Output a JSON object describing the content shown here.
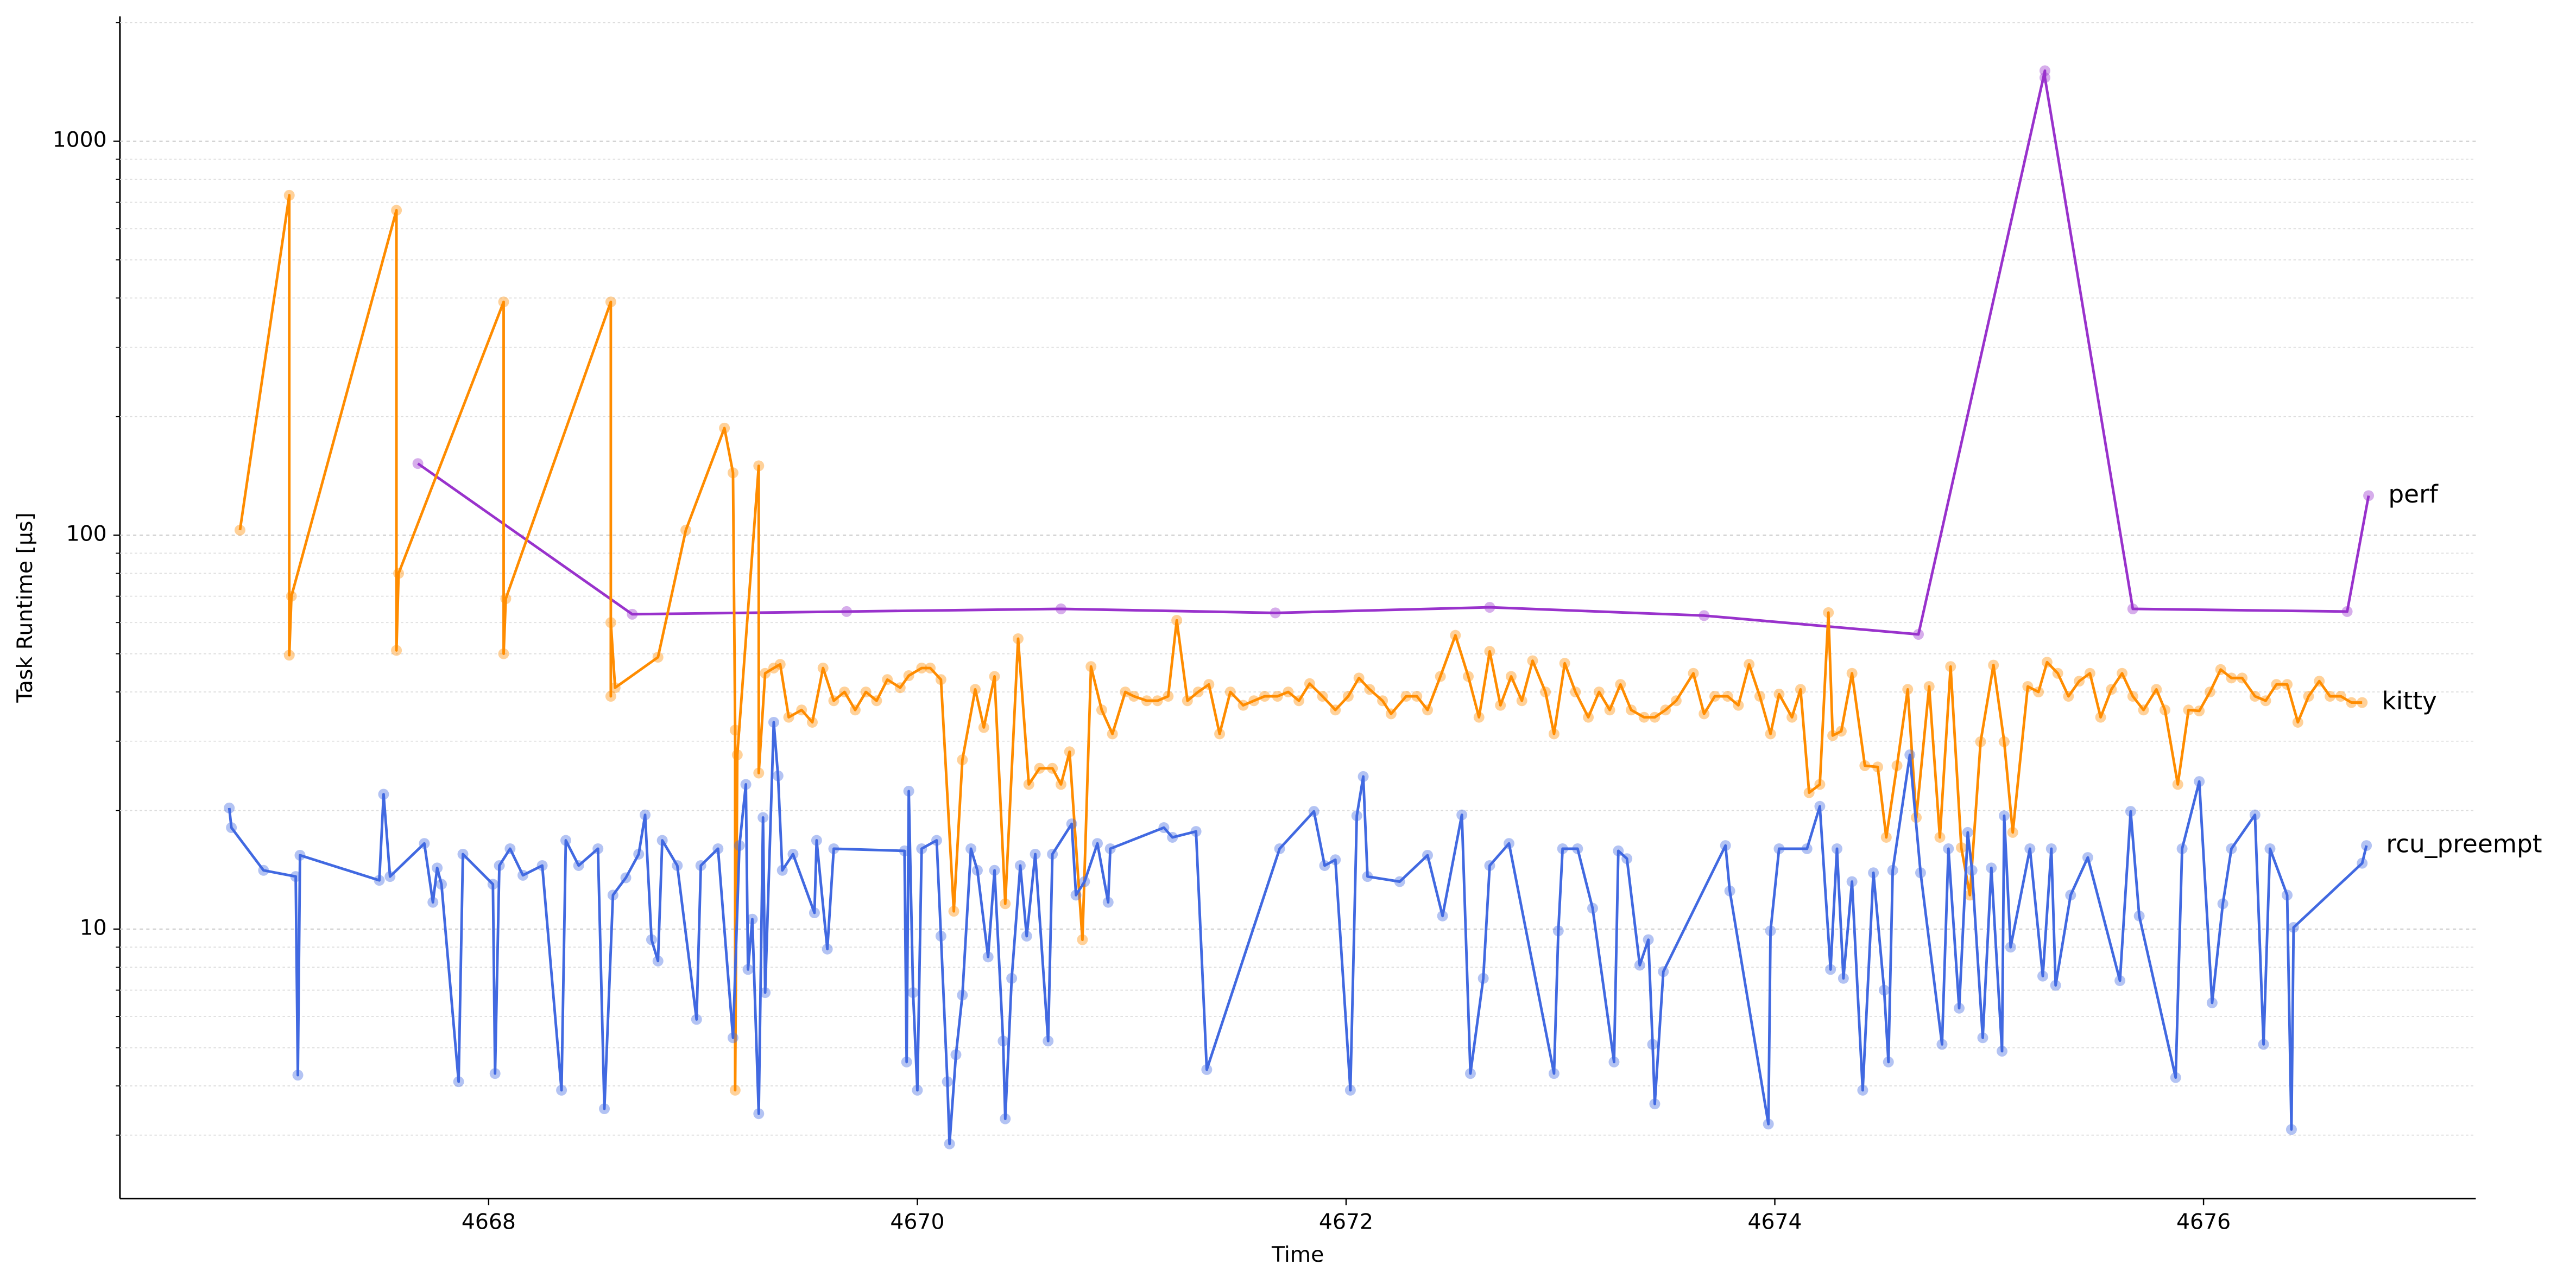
{
  "chart_data": {
    "type": "line",
    "ylabel": "Task Runtime [µs]",
    "xlabel": "Time",
    "logy": true,
    "grid": true,
    "xlim": [
      4666.28,
      4677.27
    ],
    "xticks": [
      4668,
      4670,
      4672,
      4674,
      4676
    ],
    "ylim": [
      2.07,
      2074
    ],
    "yticks": [
      10,
      100,
      1000
    ],
    "yminorticks": [
      3,
      4,
      5,
      6,
      7,
      8,
      9,
      20,
      30,
      40,
      50,
      60,
      70,
      80,
      90,
      200,
      300,
      400,
      500,
      600,
      700,
      800,
      900,
      2000
    ],
    "series": [
      {
        "name": "perf",
        "color": "#9932cc",
        "x": [
          4667.67,
          4668.67,
          4669.67,
          4670.67,
          4671.67,
          4672.67,
          4673.67,
          4674.67,
          4675.26,
          4675.26,
          4675.67,
          4676.67,
          4676.77
        ],
        "values": [
          152,
          63,
          64,
          65,
          63.5,
          65.6,
          62.5,
          56,
          1510,
          1450,
          65,
          64,
          126
        ]
      },
      {
        "name": "kitty",
        "color": "#ff8c00",
        "x": [
          4666.84,
          4667.07,
          4667.07,
          4667.08,
          4667.57,
          4667.57,
          4667.58,
          4668.07,
          4668.07,
          4668.08,
          4668.57,
          4668.57,
          4668.57,
          4668.59,
          4668.79,
          4668.92,
          4669.1,
          4669.14,
          4669.15,
          4669.15,
          4669.16,
          4669.26,
          4669.26,
          4669.29,
          4669.33,
          4669.36,
          4669.4,
          4669.46,
          4669.51,
          4669.56,
          4669.61,
          4669.66,
          4669.71,
          4669.76,
          4669.81,
          4669.86,
          4669.92,
          4669.96,
          4670.02,
          4670.06,
          4670.11,
          4670.17,
          4670.21,
          4670.27,
          4670.31,
          4670.36,
          4670.41,
          4670.47,
          4670.52,
          4670.57,
          4670.63,
          4670.67,
          4670.71,
          4670.77,
          4670.81,
          4670.86,
          4670.91,
          4670.97,
          4671.01,
          4671.07,
          4671.12,
          4671.17,
          4671.21,
          4671.26,
          4671.31,
          4671.36,
          4671.41,
          4671.46,
          4671.52,
          4671.57,
          4671.62,
          4671.68,
          4671.73,
          4671.78,
          4671.83,
          4671.89,
          4671.95,
          4672.01,
          4672.06,
          4672.11,
          4672.17,
          4672.21,
          4672.28,
          4672.33,
          4672.38,
          4672.44,
          4672.51,
          4672.57,
          4672.62,
          4672.67,
          4672.72,
          4672.77,
          4672.82,
          4672.87,
          4672.93,
          4672.97,
          4673.02,
          4673.07,
          4673.13,
          4673.18,
          4673.23,
          4673.28,
          4673.33,
          4673.39,
          4673.44,
          4673.49,
          4673.54,
          4673.62,
          4673.67,
          4673.72,
          4673.78,
          4673.83,
          4673.88,
          4673.93,
          4673.98,
          4674.02,
          4674.08,
          4674.12,
          4674.16,
          4674.21,
          4674.25,
          4674.27,
          4674.31,
          4674.36,
          4674.42,
          4674.48,
          4674.52,
          4674.57,
          4674.62,
          4674.66,
          4674.72,
          4674.77,
          4674.82,
          4674.87,
          4674.91,
          4674.96,
          4675.02,
          4675.07,
          4675.11,
          4675.18,
          4675.23,
          4675.27,
          4675.32,
          4675.37,
          4675.42,
          4675.47,
          4675.52,
          4675.57,
          4675.62,
          4675.67,
          4675.72,
          4675.78,
          4675.82,
          4675.88,
          4675.93,
          4675.98,
          4676.03,
          4676.08,
          4676.13,
          4676.18,
          4676.24,
          4676.29,
          4676.34,
          4676.39,
          4676.44,
          4676.49,
          4676.54,
          4676.59,
          4676.64,
          4676.69,
          4676.74
        ],
        "values": [
          103,
          729,
          49.6,
          70,
          668,
          51,
          80,
          391,
          50,
          69,
          391,
          39,
          60,
          41,
          49,
          103,
          187,
          144,
          32,
          3.9,
          27.7,
          150,
          24.9,
          44.6,
          46,
          47,
          34.5,
          36,
          33.5,
          46,
          38,
          40,
          36,
          40,
          38,
          43,
          41,
          44,
          46,
          46,
          43,
          11.1,
          26.9,
          40.6,
          32.5,
          43.8,
          11.6,
          54.6,
          23.3,
          25.6,
          25.6,
          23.3,
          28.2,
          9.4,
          46.4,
          36,
          31.3,
          40,
          39,
          38,
          38,
          39,
          60.8,
          38,
          40,
          41.8,
          31.3,
          40,
          37,
          38,
          39,
          39,
          40,
          38,
          42,
          39,
          36,
          39,
          43.4,
          40.6,
          38,
          35.2,
          39,
          39,
          36,
          43.8,
          55.7,
          43.8,
          34.5,
          50.7,
          37,
          43.8,
          38,
          48,
          40,
          31.3,
          47.3,
          40,
          34.5,
          40,
          36,
          41.8,
          36,
          34.5,
          34.5,
          36,
          38,
          44.6,
          35.2,
          39,
          39,
          37,
          47,
          39,
          31.3,
          39.5,
          34.5,
          40.6,
          22.2,
          23.3,
          63.6,
          31,
          31.8,
          44.6,
          26,
          25.8,
          17.1,
          26,
          40.6,
          19.2,
          41.3,
          17.1,
          46.4,
          16.1,
          12.2,
          29.9,
          46.8,
          29.9,
          17.6,
          41.3,
          40,
          47.6,
          44.6,
          39,
          42.6,
          44.6,
          34.5,
          40.6,
          44.6,
          39,
          36,
          40.6,
          36,
          23.3,
          36,
          35.8,
          40,
          45.6,
          43.4,
          43.4,
          39,
          38,
          41.8,
          41.8,
          33.5,
          39,
          42.6,
          39,
          39,
          37.6,
          37.6
        ]
      },
      {
        "name": "rcu_preempt",
        "color": "#4169e1",
        "x": [
          4666.79,
          4666.8,
          4666.95,
          4667.1,
          4667.11,
          4667.12,
          4667.49,
          4667.51,
          4667.54,
          4667.7,
          4667.74,
          4667.76,
          4667.78,
          4667.86,
          4667.88,
          4668.02,
          4668.03,
          4668.05,
          4668.1,
          4668.16,
          4668.25,
          4668.34,
          4668.36,
          4668.42,
          4668.51,
          4668.54,
          4668.58,
          4668.64,
          4668.7,
          4668.73,
          4668.76,
          4668.79,
          4668.81,
          4668.88,
          4668.97,
          4668.99,
          4669.07,
          4669.14,
          4669.17,
          4669.2,
          4669.21,
          4669.23,
          4669.26,
          4669.28,
          4669.29,
          4669.33,
          4669.35,
          4669.37,
          4669.42,
          4669.52,
          4669.53,
          4669.58,
          4669.61,
          4669.94,
          4669.95,
          4669.96,
          4669.98,
          4670.0,
          4670.02,
          4670.09,
          4670.11,
          4670.14,
          4670.15,
          4670.18,
          4670.21,
          4670.25,
          4670.28,
          4670.33,
          4670.36,
          4670.4,
          4670.41,
          4670.44,
          4670.48,
          4670.51,
          4670.55,
          4670.61,
          4670.63,
          4670.72,
          4670.74,
          4670.78,
          4670.84,
          4670.89,
          4670.9,
          4671.15,
          4671.19,
          4671.3,
          4671.35,
          4671.69,
          4671.85,
          4671.9,
          4671.95,
          4672.02,
          4672.05,
          4672.08,
          4672.1,
          4672.25,
          4672.38,
          4672.45,
          4672.54,
          4672.58,
          4672.64,
          4672.67,
          4672.76,
          4672.97,
          4672.99,
          4673.01,
          4673.08,
          4673.15,
          4673.25,
          4673.27,
          4673.31,
          4673.37,
          4673.41,
          4673.43,
          4673.44,
          4673.48,
          4673.77,
          4673.79,
          4673.97,
          4673.98,
          4674.02,
          4674.15,
          4674.21,
          4674.26,
          4674.29,
          4674.32,
          4674.36,
          4674.41,
          4674.46,
          4674.51,
          4674.53,
          4674.55,
          4674.63,
          4674.68,
          4674.78,
          4674.81,
          4674.86,
          4674.9,
          4674.92,
          4674.97,
          4675.01,
          4675.06,
          4675.07,
          4675.1,
          4675.19,
          4675.25,
          4675.29,
          4675.31,
          4675.38,
          4675.46,
          4675.61,
          4675.66,
          4675.7,
          4675.87,
          4675.9,
          4675.98,
          4676.04,
          4676.09,
          4676.13,
          4676.24,
          4676.28,
          4676.31,
          4676.39,
          4676.41,
          4676.42,
          4676.74,
          4676.76
        ],
        "values": [
          20.3,
          18.1,
          14.1,
          13.6,
          4.26,
          15.4,
          13.3,
          22,
          13.6,
          16.5,
          11.7,
          14.3,
          13,
          4.1,
          15.5,
          13,
          4.3,
          14.5,
          16,
          13.7,
          14.5,
          3.9,
          16.8,
          14.5,
          16,
          3.5,
          12.2,
          13.5,
          15.5,
          19.5,
          9.4,
          8.3,
          16.8,
          14.5,
          5.9,
          14.5,
          16,
          5.3,
          16.3,
          23.3,
          7.9,
          10.6,
          3.4,
          19.2,
          6.9,
          33.5,
          24.5,
          14.1,
          15.5,
          11,
          16.8,
          8.9,
          16,
          15.8,
          4.6,
          22.4,
          6.9,
          3.9,
          16,
          16.8,
          9.6,
          4.1,
          2.85,
          4.8,
          6.8,
          16,
          14.1,
          8.5,
          14.1,
          5.2,
          3.3,
          7.5,
          14.5,
          9.6,
          15.5,
          5.2,
          15.5,
          18.5,
          12.2,
          13.2,
          16.5,
          11.7,
          16,
          18.1,
          17.1,
          17.7,
          4.4,
          16,
          19.9,
          14.5,
          15,
          3.9,
          19.4,
          24.4,
          13.6,
          13.2,
          15.4,
          10.8,
          19.5,
          4.3,
          7.5,
          14.5,
          16.5,
          4.3,
          9.9,
          16,
          16,
          11.3,
          4.6,
          15.8,
          15.1,
          8.1,
          9.4,
          5.1,
          3.6,
          7.8,
          16.3,
          12.5,
          3.2,
          9.9,
          16,
          16,
          20.5,
          7.9,
          16,
          7.5,
          13.2,
          3.9,
          13.9,
          7,
          4.6,
          14.1,
          27.7,
          13.9,
          5.1,
          16,
          6.3,
          17.6,
          14.1,
          5.3,
          14.3,
          4.9,
          19.4,
          9,
          16,
          7.6,
          16,
          7.2,
          12.2,
          15.2,
          7.4,
          19.9,
          10.8,
          4.2,
          16,
          23.7,
          6.5,
          11.6,
          16,
          19.5,
          5.1,
          16,
          12.2,
          3.1,
          10.1,
          14.7,
          16.3
        ]
      }
    ]
  }
}
